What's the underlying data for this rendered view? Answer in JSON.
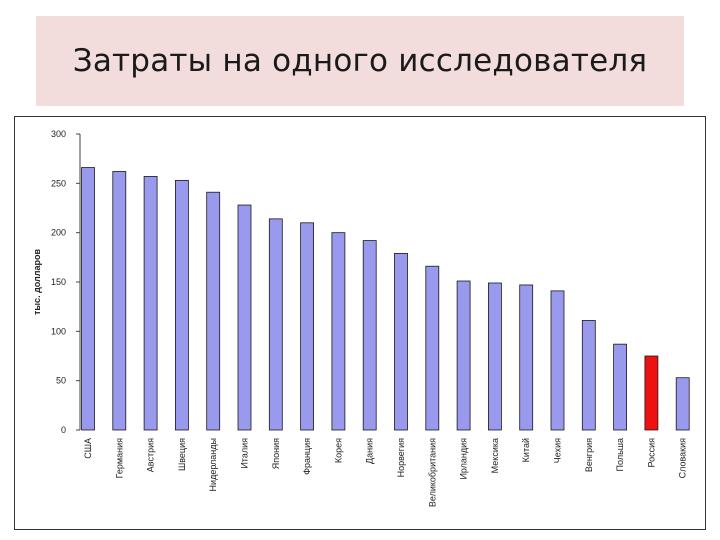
{
  "header": {
    "title": "Затраты на одного исследователя"
  },
  "chart_data": {
    "type": "bar",
    "title": "Затраты на одного исследователя",
    "ylabel": "тыс. долларов",
    "xlabel": "",
    "ylim": [
      0,
      300
    ],
    "yticks": [
      0,
      50,
      100,
      150,
      200,
      250,
      300
    ],
    "grid": false,
    "categories": [
      "США",
      "Германия",
      "Австрия",
      "Швеция",
      "Нидерланды",
      "Италия",
      "Япония",
      "Франция",
      "Корея",
      "Дания",
      "Норвегия",
      "Великобритания",
      "Ирландия",
      "Мексика",
      "Китай",
      "Чехия",
      "Венгрия",
      "Польша",
      "Россия",
      "Словакия"
    ],
    "values": [
      266,
      262,
      257,
      253,
      241,
      228,
      214,
      210,
      200,
      192,
      179,
      166,
      151,
      149,
      147,
      141,
      111,
      87,
      75,
      53
    ],
    "colors": {
      "default": "#9999ee",
      "highlight": "#ee1111",
      "highlight_category": "Россия"
    }
  }
}
